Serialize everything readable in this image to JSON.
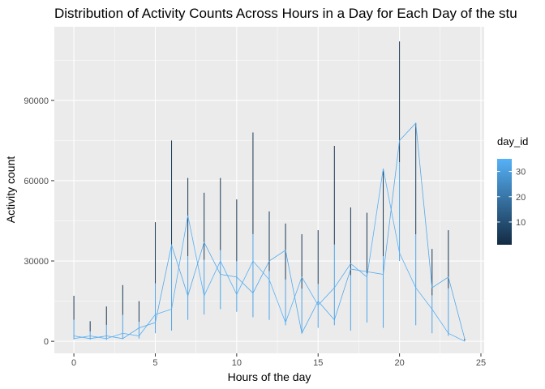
{
  "chart_data": {
    "type": "line",
    "title": "Distribution of Activity Counts Across Hours in a Day for Each Day of the stu",
    "xlabel": "Hours of the day",
    "ylabel": "Activity count",
    "xlim": [
      -1.2,
      25.2
    ],
    "ylim": [
      -4500,
      117500
    ],
    "x_ticks": [
      0,
      5,
      10,
      15,
      20,
      25
    ],
    "x_tick_labels": [
      "0",
      "5",
      "10",
      "15",
      "20",
      "25"
    ],
    "y_ticks": [
      0,
      30000,
      60000,
      90000
    ],
    "y_tick_labels": [
      "0",
      "30000",
      "60000",
      "90000"
    ],
    "grid": true,
    "legend": {
      "title": "day_id",
      "position": "right",
      "type": "colorbar",
      "range": [
        1,
        35
      ],
      "breaks": [
        10,
        20,
        30
      ],
      "break_labels": [
        "10",
        "20",
        "30"
      ],
      "low_color": "#132B43",
      "high_color": "#56B1F7"
    },
    "hour_ranges": [
      {
        "hour": 0,
        "min": 700,
        "max": 17000
      },
      {
        "hour": 1,
        "min": 600,
        "max": 7500
      },
      {
        "hour": 2,
        "min": 500,
        "max": 13000
      },
      {
        "hour": 3,
        "min": 800,
        "max": 21000
      },
      {
        "hour": 4,
        "min": 1000,
        "max": 15000
      },
      {
        "hour": 5,
        "min": 3000,
        "max": 44500
      },
      {
        "hour": 6,
        "min": 4000,
        "max": 75000
      },
      {
        "hour": 7,
        "min": 8000,
        "max": 61000
      },
      {
        "hour": 8,
        "min": 10000,
        "max": 55500
      },
      {
        "hour": 9,
        "min": 12000,
        "max": 61000
      },
      {
        "hour": 10,
        "min": 11000,
        "max": 53000
      },
      {
        "hour": 11,
        "min": 9000,
        "max": 78000
      },
      {
        "hour": 12,
        "min": 8000,
        "max": 48500
      },
      {
        "hour": 13,
        "min": 6000,
        "max": 44000
      },
      {
        "hour": 14,
        "min": 3000,
        "max": 40000
      },
      {
        "hour": 15,
        "min": 5000,
        "max": 41500
      },
      {
        "hour": 16,
        "min": 6000,
        "max": 73000
      },
      {
        "hour": 17,
        "min": 4000,
        "max": 50000
      },
      {
        "hour": 18,
        "min": 7000,
        "max": 48000
      },
      {
        "hour": 19,
        "min": 5000,
        "max": 64500
      },
      {
        "hour": 20,
        "min": 30000,
        "max": 112000
      },
      {
        "hour": 21,
        "min": 6000,
        "max": 81500
      },
      {
        "hour": 22,
        "min": 3000,
        "max": 34500
      },
      {
        "hour": 23,
        "min": 2000,
        "max": 41500
      },
      {
        "hour": 24,
        "min": 0,
        "max": 1000
      }
    ],
    "series": [
      {
        "day_id": 35,
        "x": [
          0,
          1,
          2,
          3,
          4,
          5,
          6,
          7,
          8,
          9,
          10,
          11,
          12,
          13,
          14,
          15,
          16,
          17,
          18,
          19,
          20,
          21,
          22,
          23,
          24
        ],
        "y": [
          1000,
          2000,
          1000,
          3000,
          2000,
          10000,
          12000,
          47000,
          17000,
          30000,
          17500,
          30000,
          23000,
          7000,
          24000,
          13500,
          20000,
          29000,
          24000,
          64500,
          33000,
          20000,
          12000,
          3000,
          0
        ]
      },
      {
        "day_id": 33,
        "x": [
          0,
          1,
          2,
          3,
          4,
          5,
          6,
          7,
          8,
          9,
          10,
          11,
          12,
          13,
          14,
          15,
          16,
          17,
          18,
          19,
          20,
          21,
          22,
          23,
          24
        ],
        "y": [
          2000,
          1000,
          2000,
          1000,
          5000,
          7000,
          36000,
          17000,
          37000,
          25000,
          24000,
          18000,
          30000,
          34000,
          3000,
          15000,
          8000,
          27000,
          26000,
          25000,
          75000,
          81500,
          20000,
          24000,
          1000
        ]
      }
    ]
  }
}
